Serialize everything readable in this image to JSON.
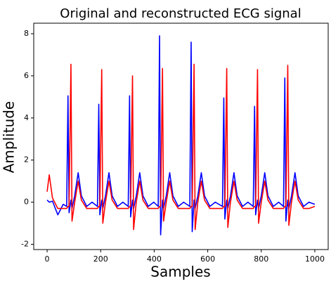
{
  "chart_data": {
    "type": "line",
    "title": "Original and reconstructed ECG signal",
    "x_label": "Samples",
    "y_label": "Amplitude",
    "x": [
      0,
      8,
      20,
      40,
      60,
      73,
      78,
      82,
      89,
      93,
      103,
      116,
      128,
      148,
      168,
      188,
      193,
      197,
      204,
      208,
      218,
      231,
      243,
      263,
      283,
      303,
      308,
      312,
      319,
      323,
      333,
      346,
      358,
      378,
      398,
      415,
      420,
      424,
      431,
      435,
      445,
      458,
      470,
      490,
      510,
      533,
      538,
      542,
      549,
      553,
      563,
      576,
      588,
      608,
      628,
      655,
      660,
      664,
      671,
      675,
      685,
      698,
      710,
      730,
      750,
      770,
      775,
      779,
      786,
      790,
      800,
      813,
      825,
      845,
      865,
      883,
      888,
      892,
      899,
      903,
      913,
      926,
      938,
      958,
      978,
      1000
    ],
    "series": [
      {
        "color": "#0000ff",
        "values": [
          0.1,
          0.0,
          0.05,
          -0.6,
          -0.1,
          -0.2,
          5.05,
          -0.5,
          0.1,
          -0.3,
          0.3,
          1.4,
          0.3,
          -0.2,
          0.0,
          -0.2,
          4.65,
          -0.6,
          0.1,
          -0.3,
          0.3,
          1.4,
          0.3,
          -0.2,
          0.0,
          -0.2,
          5.05,
          -0.7,
          0.1,
          -0.3,
          0.3,
          1.4,
          0.3,
          -0.2,
          0.0,
          -0.2,
          7.9,
          -1.55,
          0.1,
          -0.3,
          0.3,
          1.4,
          0.3,
          -0.2,
          0.0,
          -0.2,
          7.6,
          -1.4,
          0.1,
          -0.3,
          0.3,
          1.4,
          0.3,
          -0.2,
          0.0,
          -0.2,
          4.95,
          -0.8,
          0.1,
          -0.3,
          0.3,
          1.4,
          0.3,
          -0.2,
          0.0,
          -0.2,
          4.55,
          -0.6,
          0.1,
          -0.3,
          0.3,
          1.4,
          0.3,
          -0.2,
          0.0,
          -0.2,
          5.9,
          -0.9,
          0.1,
          -0.3,
          0.3,
          1.4,
          0.3,
          -0.2,
          0.0,
          -0.1
        ]
      },
      {
        "color": "#ff0000",
        "values": [
          0.5,
          1.3,
          0.2,
          -0.3,
          -0.3,
          -0.3,
          -0.2,
          -0.2,
          6.55,
          -0.9,
          0.0,
          1.0,
          0.1,
          -0.3,
          -0.3,
          -0.3,
          -0.2,
          -0.2,
          6.3,
          -1.0,
          0.0,
          1.0,
          0.1,
          -0.3,
          -0.3,
          -0.3,
          -0.2,
          -0.2,
          6.0,
          -1.3,
          0.0,
          1.0,
          0.1,
          -0.3,
          -0.3,
          -0.3,
          -0.2,
          -0.2,
          6.35,
          -0.9,
          0.0,
          1.0,
          0.1,
          -0.3,
          -0.3,
          -0.3,
          -0.2,
          -0.2,
          6.55,
          -1.3,
          0.0,
          1.0,
          0.1,
          -0.3,
          -0.3,
          -0.3,
          -0.2,
          -0.2,
          6.35,
          -1.2,
          0.0,
          1.0,
          0.1,
          -0.3,
          -0.3,
          -0.3,
          -0.2,
          -0.2,
          6.3,
          -1.0,
          0.0,
          1.0,
          0.1,
          -0.3,
          -0.3,
          -0.3,
          -0.2,
          -0.2,
          6.5,
          -1.1,
          0.0,
          1.0,
          0.1,
          -0.3,
          -0.3,
          -0.2
        ]
      }
    ],
    "xlim": [
      -50,
      1050
    ],
    "ylim": [
      -2.25,
      8.5
    ],
    "xticks": [
      0,
      200,
      400,
      600,
      800,
      1000
    ],
    "yticks": [
      -2,
      0,
      2,
      4,
      6,
      8
    ],
    "grid": false
  }
}
